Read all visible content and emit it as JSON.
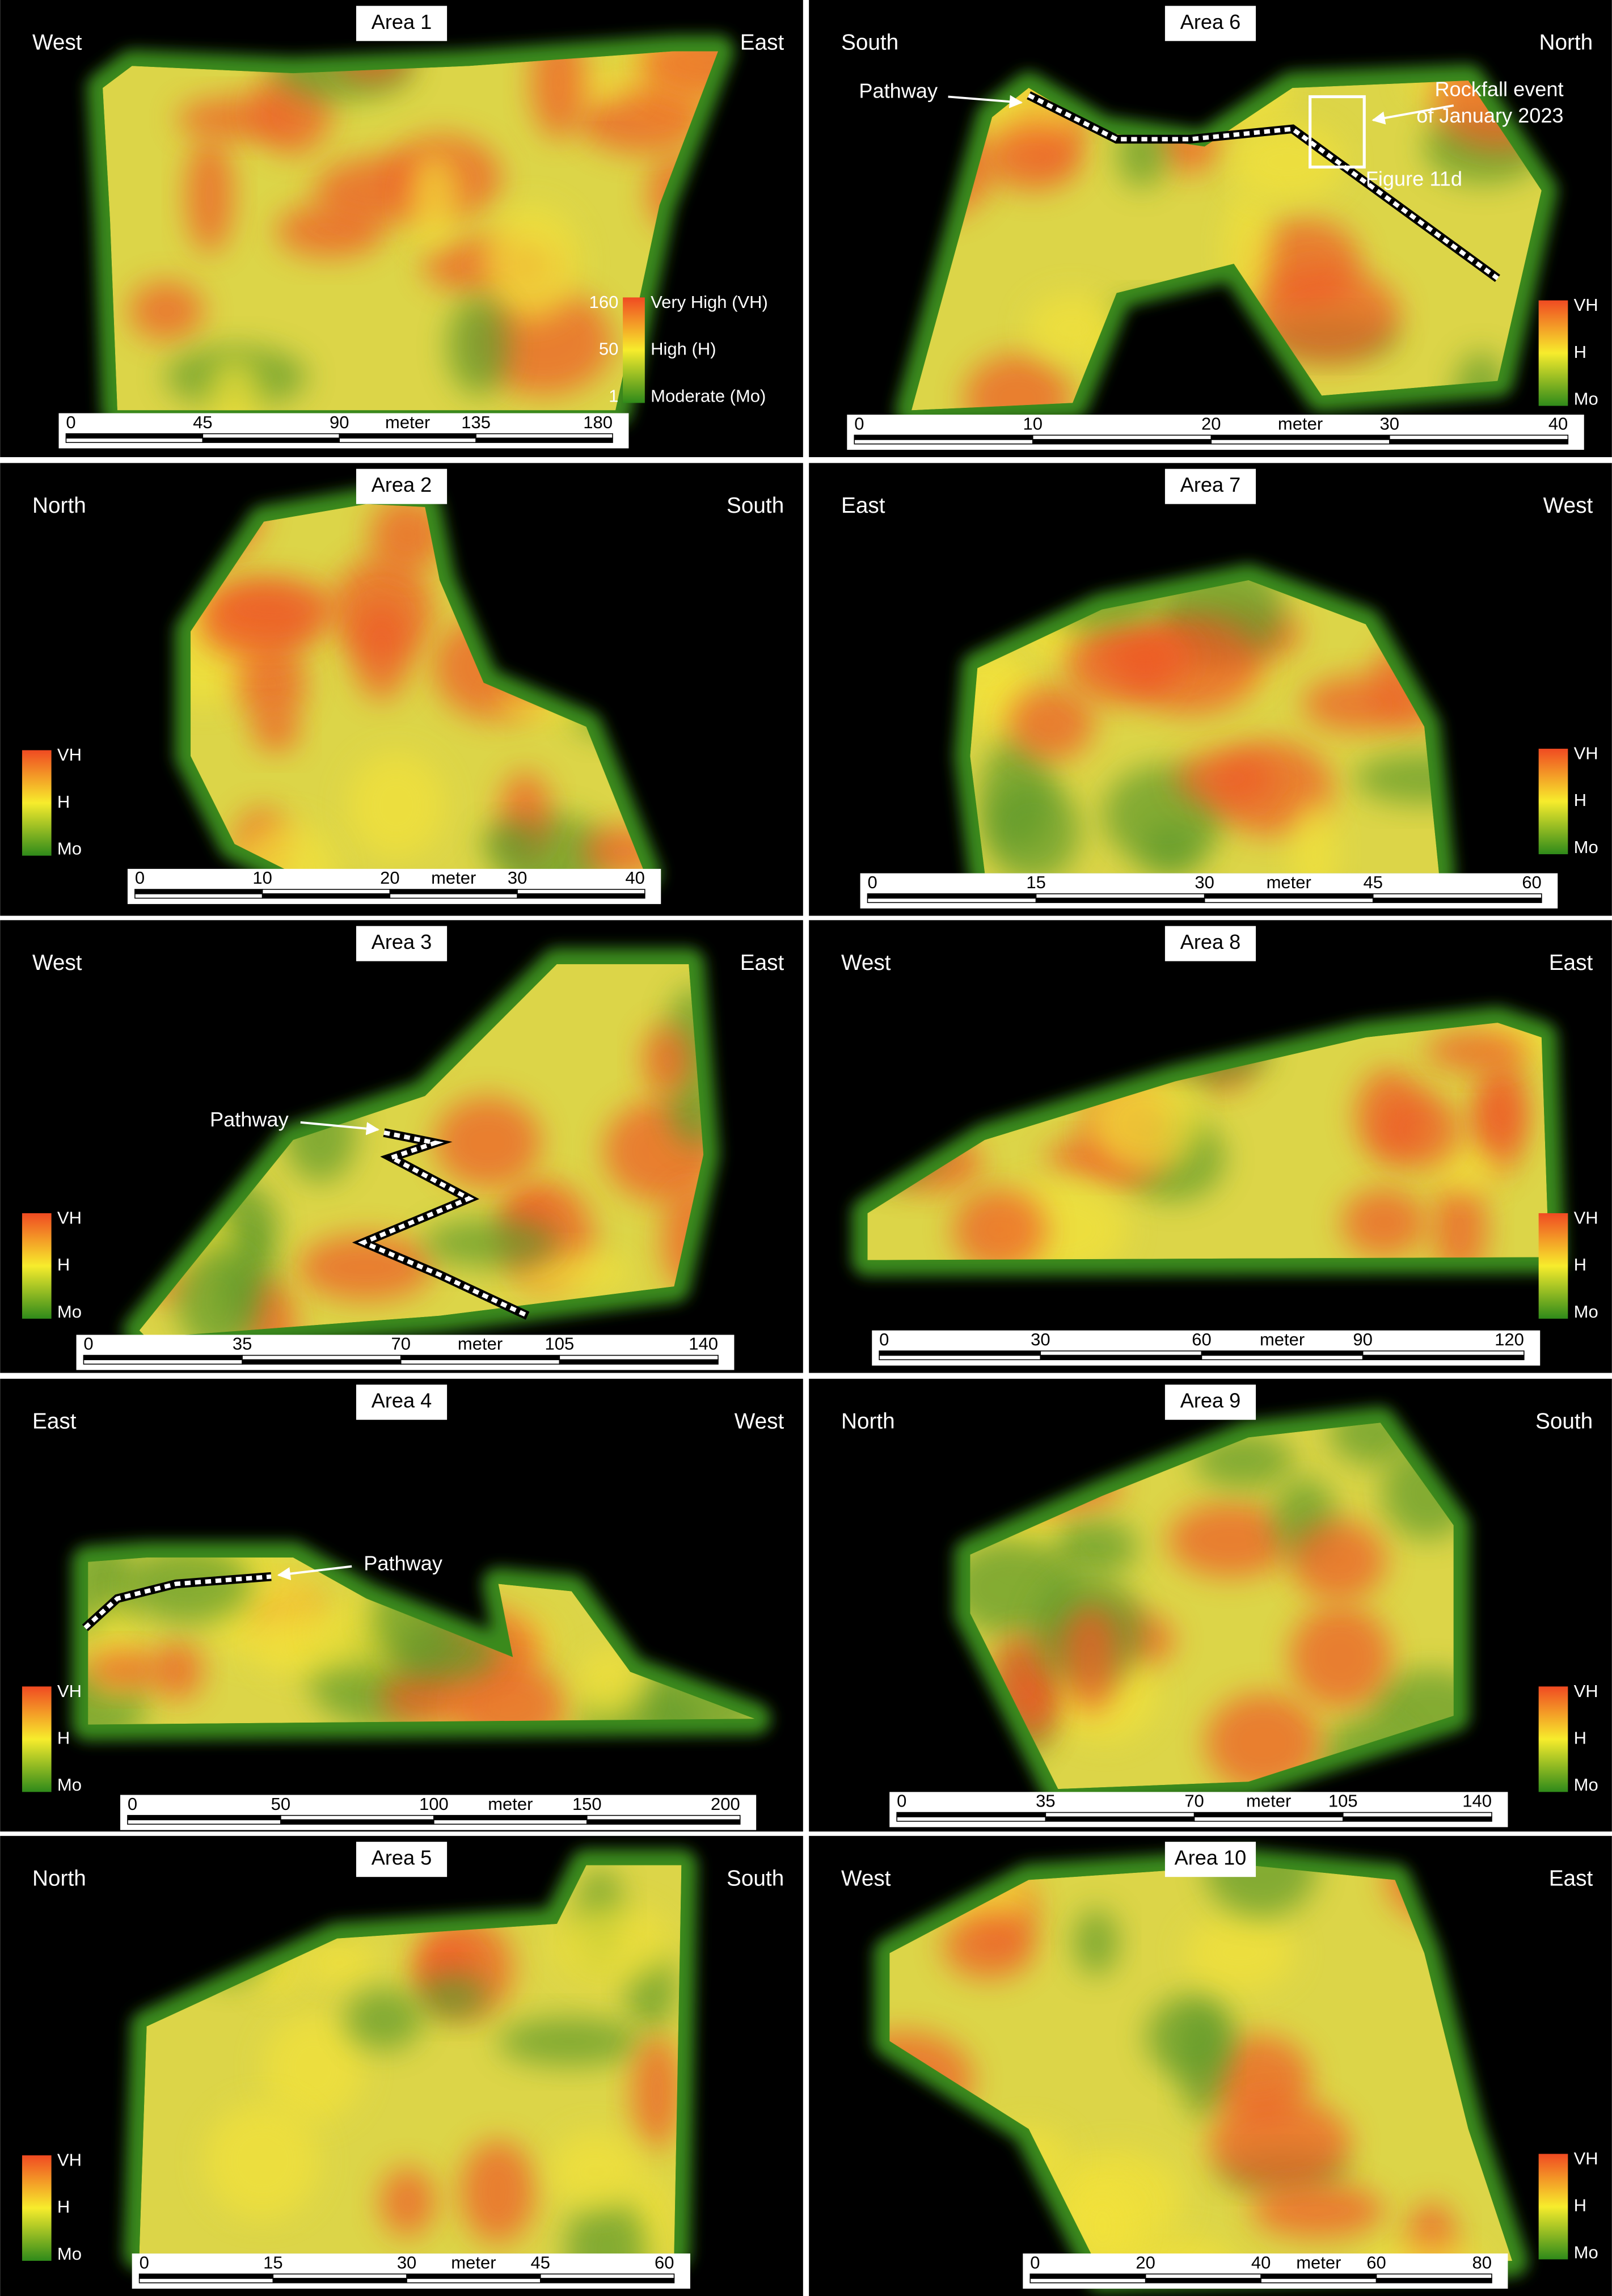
{
  "panels": [
    {
      "title": "Area 1",
      "directions": [
        "West",
        "East"
      ],
      "legend": {
        "values": [
          160,
          50,
          1
        ],
        "labels": [
          "Very High (VH)",
          "High (H)",
          "Moderate (Mo)"
        ]
      },
      "scale": {
        "ticks": [
          0,
          45,
          90,
          135,
          180
        ],
        "unit": "meter"
      }
    },
    {
      "title": "Area 2",
      "directions": [
        "North",
        "South"
      ],
      "legend": {
        "labels": [
          "VH",
          "H",
          "Mo"
        ]
      },
      "scale": {
        "ticks": [
          0,
          10,
          20,
          30,
          40
        ],
        "unit": "meter"
      }
    },
    {
      "title": "Area 3",
      "directions": [
        "West",
        "East"
      ],
      "legend": {
        "labels": [
          "VH",
          "H",
          "Mo"
        ]
      },
      "scale": {
        "ticks": [
          0,
          35,
          70,
          105,
          140
        ],
        "unit": "meter"
      },
      "annotations": [
        "Pathway"
      ]
    },
    {
      "title": "Area 4",
      "directions": [
        "East",
        "West"
      ],
      "legend": {
        "labels": [
          "VH",
          "H",
          "Mo"
        ]
      },
      "scale": {
        "ticks": [
          0,
          50,
          100,
          150,
          200
        ],
        "unit": "meter"
      },
      "annotations": [
        "Pathway"
      ]
    },
    {
      "title": "Area 5",
      "directions": [
        "North",
        "South"
      ],
      "legend": {
        "labels": [
          "VH",
          "H",
          "Mo"
        ]
      },
      "scale": {
        "ticks": [
          0,
          15,
          30,
          45,
          60
        ],
        "unit": "meter"
      }
    },
    {
      "title": "Area 6",
      "directions": [
        "South",
        "North"
      ],
      "legend": {
        "labels": [
          "VH",
          "H",
          "Mo"
        ]
      },
      "scale": {
        "ticks": [
          0,
          10,
          20,
          30,
          40
        ],
        "unit": "meter"
      },
      "annotations": [
        "Pathway",
        "Rockfall event",
        "of January 2023",
        "Figure 11d"
      ]
    },
    {
      "title": "Area 7",
      "directions": [
        "East",
        "West"
      ],
      "legend": {
        "labels": [
          "VH",
          "H",
          "Mo"
        ]
      },
      "scale": {
        "ticks": [
          0,
          15,
          30,
          45,
          60
        ],
        "unit": "meter"
      }
    },
    {
      "title": "Area 8",
      "directions": [
        "West",
        "East"
      ],
      "legend": {
        "labels": [
          "VH",
          "H",
          "Mo"
        ]
      },
      "scale": {
        "ticks": [
          0,
          30,
          60,
          90,
          120
        ],
        "unit": "meter"
      }
    },
    {
      "title": "Area 9",
      "directions": [
        "North",
        "South"
      ],
      "legend": {
        "labels": [
          "VH",
          "H",
          "Mo"
        ]
      },
      "scale": {
        "ticks": [
          0,
          35,
          70,
          105,
          140
        ],
        "unit": "meter"
      }
    },
    {
      "title": "Area 10",
      "directions": [
        "West",
        "East"
      ],
      "legend": {
        "labels": [
          "VH",
          "H",
          "Mo"
        ]
      },
      "scale": {
        "ticks": [
          0,
          20,
          40,
          60,
          80
        ],
        "unit": "meter"
      }
    }
  ]
}
